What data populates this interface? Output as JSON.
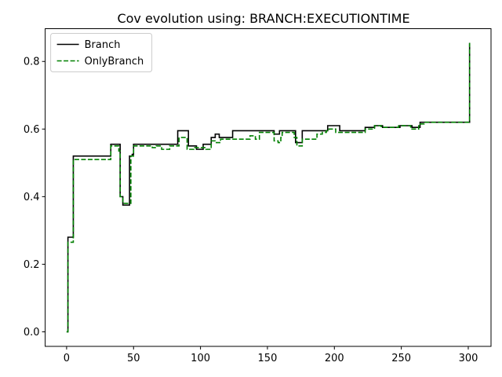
{
  "chart_data": {
    "type": "line",
    "title": "Cov evolution using: BRANCH:EXECUTIONTIME",
    "xlabel": "",
    "ylabel": "",
    "xlim": [
      -16,
      317
    ],
    "ylim": [
      -0.043,
      0.897
    ],
    "xticks": [
      0,
      50,
      100,
      150,
      200,
      250,
      300
    ],
    "xtick_labels": [
      "0",
      "50",
      "100",
      "150",
      "200",
      "250",
      "300"
    ],
    "yticks": [
      0.0,
      0.2,
      0.4,
      0.6,
      0.8
    ],
    "ytick_labels": [
      "0.0",
      "0.2",
      "0.4",
      "0.6",
      "0.8"
    ],
    "grid": false,
    "legend_position": "top-left",
    "step": "post",
    "series": [
      {
        "name": "Branch",
        "color": "#000000",
        "style": "solid",
        "points": [
          [
            0,
            0.0
          ],
          [
            1,
            0.28
          ],
          [
            4,
            0.28
          ],
          [
            5,
            0.52
          ],
          [
            32,
            0.52
          ],
          [
            33,
            0.555
          ],
          [
            39,
            0.555
          ],
          [
            40,
            0.4
          ],
          [
            42,
            0.375
          ],
          [
            46,
            0.375
          ],
          [
            47,
            0.52
          ],
          [
            49,
            0.525
          ],
          [
            50,
            0.555
          ],
          [
            82,
            0.555
          ],
          [
            83,
            0.595
          ],
          [
            90,
            0.595
          ],
          [
            91,
            0.55
          ],
          [
            96,
            0.55
          ],
          [
            97,
            0.54
          ],
          [
            101,
            0.54
          ],
          [
            102,
            0.555
          ],
          [
            107,
            0.555
          ],
          [
            108,
            0.575
          ],
          [
            111,
            0.585
          ],
          [
            114,
            0.575
          ],
          [
            123,
            0.575
          ],
          [
            124,
            0.595
          ],
          [
            154,
            0.595
          ],
          [
            155,
            0.585
          ],
          [
            158,
            0.585
          ],
          [
            159,
            0.595
          ],
          [
            170,
            0.595
          ],
          [
            171,
            0.56
          ],
          [
            175,
            0.56
          ],
          [
            176,
            0.595
          ],
          [
            194,
            0.595
          ],
          [
            195,
            0.61
          ],
          [
            203,
            0.61
          ],
          [
            204,
            0.595
          ],
          [
            222,
            0.595
          ],
          [
            223,
            0.605
          ],
          [
            229,
            0.605
          ],
          [
            230,
            0.61
          ],
          [
            235,
            0.61
          ],
          [
            236,
            0.605
          ],
          [
            248,
            0.605
          ],
          [
            249,
            0.61
          ],
          [
            257,
            0.61
          ],
          [
            258,
            0.605
          ],
          [
            263,
            0.605
          ],
          [
            264,
            0.62
          ],
          [
            300,
            0.62
          ],
          [
            301,
            0.855
          ]
        ]
      },
      {
        "name": "OnlyBranch",
        "color": "#008000",
        "style": "dashed",
        "points": [
          [
            0,
            0.0
          ],
          [
            1,
            0.265
          ],
          [
            4,
            0.265
          ],
          [
            5,
            0.51
          ],
          [
            32,
            0.51
          ],
          [
            33,
            0.55
          ],
          [
            38,
            0.55
          ],
          [
            39,
            0.535
          ],
          [
            40,
            0.4
          ],
          [
            42,
            0.38
          ],
          [
            47,
            0.38
          ],
          [
            48,
            0.52
          ],
          [
            50,
            0.55
          ],
          [
            63,
            0.55
          ],
          [
            64,
            0.545
          ],
          [
            67,
            0.55
          ],
          [
            70,
            0.55
          ],
          [
            71,
            0.54
          ],
          [
            76,
            0.54
          ],
          [
            77,
            0.55
          ],
          [
            83,
            0.55
          ],
          [
            84,
            0.575
          ],
          [
            89,
            0.575
          ],
          [
            90,
            0.54
          ],
          [
            94,
            0.54
          ],
          [
            95,
            0.545
          ],
          [
            103,
            0.545
          ],
          [
            104,
            0.54
          ],
          [
            107,
            0.54
          ],
          [
            108,
            0.565
          ],
          [
            110,
            0.565
          ],
          [
            111,
            0.56
          ],
          [
            114,
            0.56
          ],
          [
            115,
            0.57
          ],
          [
            136,
            0.57
          ],
          [
            137,
            0.58
          ],
          [
            140,
            0.58
          ],
          [
            141,
            0.57
          ],
          [
            143,
            0.57
          ],
          [
            144,
            0.59
          ],
          [
            154,
            0.59
          ],
          [
            155,
            0.565
          ],
          [
            157,
            0.565
          ],
          [
            158,
            0.56
          ],
          [
            160,
            0.575
          ],
          [
            161,
            0.59
          ],
          [
            169,
            0.59
          ],
          [
            170,
            0.575
          ],
          [
            172,
            0.55
          ],
          [
            175,
            0.55
          ],
          [
            176,
            0.57
          ],
          [
            186,
            0.57
          ],
          [
            187,
            0.585
          ],
          [
            191,
            0.59
          ],
          [
            194,
            0.595
          ],
          [
            196,
            0.6
          ],
          [
            200,
            0.6
          ],
          [
            201,
            0.59
          ],
          [
            222,
            0.59
          ],
          [
            223,
            0.6
          ],
          [
            229,
            0.6
          ],
          [
            230,
            0.61
          ],
          [
            234,
            0.61
          ],
          [
            235,
            0.605
          ],
          [
            247,
            0.605
          ],
          [
            248,
            0.61
          ],
          [
            256,
            0.61
          ],
          [
            257,
            0.6
          ],
          [
            262,
            0.6
          ],
          [
            263,
            0.615
          ],
          [
            266,
            0.615
          ],
          [
            267,
            0.62
          ],
          [
            300,
            0.62
          ],
          [
            301,
            0.855
          ]
        ]
      }
    ]
  }
}
